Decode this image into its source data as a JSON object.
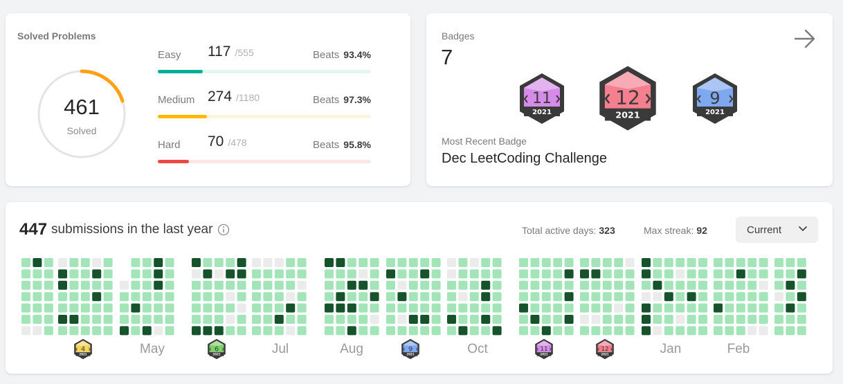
{
  "solved": {
    "title": "Solved Problems",
    "count": "461",
    "label": "Solved",
    "difficulties": [
      {
        "name": "Easy",
        "solved": "117",
        "total": "/555",
        "beats_label": "Beats",
        "beats": "93.4%",
        "fraction": 0.211,
        "color": "#00af9b",
        "track": "#e3f6ef"
      },
      {
        "name": "Medium",
        "solved": "274",
        "total": "/1180",
        "beats_label": "Beats",
        "beats": "97.3%",
        "fraction": 0.232,
        "color": "#ffb800",
        "track": "#fff5de"
      },
      {
        "name": "Hard",
        "solved": "70",
        "total": "/478",
        "beats_label": "Beats",
        "beats": "95.8%",
        "fraction": 0.146,
        "color": "#ef4743",
        "track": "#fde6e6"
      }
    ]
  },
  "badges": {
    "label": "Badges",
    "count": "7",
    "items": [
      {
        "number": "11",
        "year": "2021",
        "color": "#d58be8"
      },
      {
        "number": "12",
        "year": "2021",
        "color": "#f47f8e"
      },
      {
        "number": "9",
        "year": "2021",
        "color": "#7ea8f0"
      }
    ],
    "recent_label": "Most Recent Badge",
    "recent_name": "Dec LeetCoding Challenge"
  },
  "submissions": {
    "count": "447",
    "text": "submissions in the last year",
    "active_days_label": "Total active days:",
    "active_days": "323",
    "max_streak_label": "Max streak:",
    "max_streak": "92",
    "dropdown": "Current",
    "months": [
      "May",
      "Jul",
      "Aug",
      "Oct",
      "Jan",
      "Feb"
    ],
    "month_badges": [
      {
        "number": "4",
        "year": "2021",
        "color": "#f4d35e"
      },
      {
        "number": "6",
        "year": "2021",
        "color": "#7fcf6b"
      },
      {
        "number": "9",
        "year": "2021",
        "color": "#7ea8f0"
      },
      {
        "number": "11",
        "year": "2021",
        "color": "#d58be8"
      },
      {
        "number": "12",
        "year": "2021",
        "color": "#f47f8e"
      }
    ],
    "colors": {
      "empty": "#ebebeb",
      "level1": "#a3e4b8",
      "level2": "#16532d"
    }
  }
}
